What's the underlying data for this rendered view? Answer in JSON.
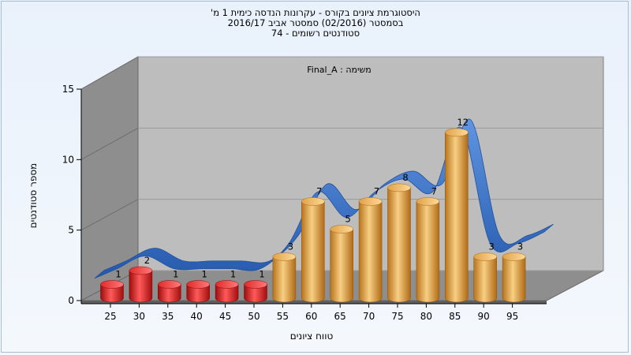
{
  "title_lines": [
    "היסטוגרמת ציונים בקורס - עקרונות הנדסה כימית 1 מ'",
    "בסמסטר  (02/2016)  סמסטר אביב 2016/17",
    "סטודנטים רשומים - 74"
  ],
  "task_label": "משימה : Final_A",
  "chart_data": {
    "type": "bar",
    "view": "3d",
    "xlabel": "טווח ציונים",
    "ylabel": "מספר סטודנטים",
    "categories": [
      "25",
      "30",
      "35",
      "40",
      "45",
      "50",
      "55",
      "60",
      "65",
      "70",
      "75",
      "80",
      "85",
      "90",
      "95"
    ],
    "values": [
      1,
      2,
      1,
      1,
      1,
      1,
      3,
      7,
      5,
      7,
      8,
      7,
      12,
      3,
      3
    ],
    "ylim": [
      0,
      15
    ],
    "yticks": [
      0,
      5,
      10,
      15
    ],
    "series_colors": {
      "fail": "#d81e1e",
      "pass": "#e8a53c"
    },
    "fail_bar_count": 6,
    "trend_line": {
      "style": "3d-ribbon",
      "color": "#2f6ec9"
    },
    "grid": true,
    "walls": {
      "back": "#bdbdbd",
      "side": "#8e8e8e",
      "floor": "#8e8e8e"
    }
  }
}
